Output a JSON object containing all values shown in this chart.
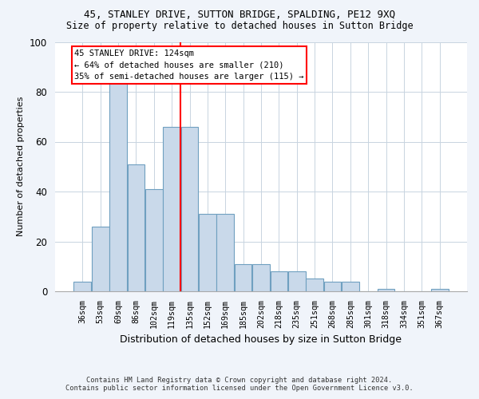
{
  "title1": "45, STANLEY DRIVE, SUTTON BRIDGE, SPALDING, PE12 9XQ",
  "title2": "Size of property relative to detached houses in Sutton Bridge",
  "xlabel": "Distribution of detached houses by size in Sutton Bridge",
  "ylabel": "Number of detached properties",
  "footnote": "Contains HM Land Registry data © Crown copyright and database right 2024.\nContains public sector information licensed under the Open Government Licence v3.0.",
  "categories": [
    "36sqm",
    "53sqm",
    "69sqm",
    "86sqm",
    "102sqm",
    "119sqm",
    "135sqm",
    "152sqm",
    "169sqm",
    "185sqm",
    "202sqm",
    "218sqm",
    "235sqm",
    "251sqm",
    "268sqm",
    "285sqm",
    "301sqm",
    "318sqm",
    "334sqm",
    "351sqm",
    "367sqm"
  ],
  "values": [
    4,
    26,
    84,
    51,
    41,
    66,
    66,
    31,
    31,
    11,
    11,
    8,
    8,
    5,
    4,
    4,
    0,
    1,
    0,
    0,
    1
  ],
  "bar_color": "#c9d9ea",
  "bar_edge_color": "#6fa0c0",
  "property_line_label": "45 STANLEY DRIVE: 124sqm",
  "annotation_line2": "← 64% of detached houses are smaller (210)",
  "annotation_line3": "35% of semi-detached houses are larger (115) →",
  "vline_color": "red",
  "ylim": [
    0,
    100
  ],
  "yticks": [
    0,
    20,
    40,
    60,
    80,
    100
  ],
  "background_color": "#f0f4fa",
  "plot_background": "#ffffff",
  "grid_color": "#c8d4e0",
  "title_fontsize": 9,
  "subtitle_fontsize": 8.5,
  "ylabel_fontsize": 8,
  "xlabel_fontsize": 9
}
